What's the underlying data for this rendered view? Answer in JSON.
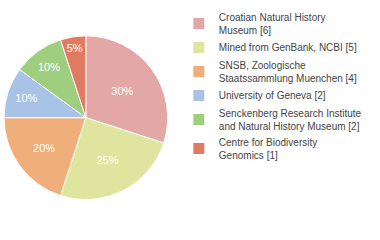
{
  "chart_data": {
    "type": "pie",
    "categories": [
      "Croatian Natural History Museum [6]",
      "Mined from GenBank, NCBI [5]",
      "SNSB, Zoologische Staatssammlung Muenchen [4]",
      "University of Geneva [2]",
      "Senckenberg Research Institute and Natural History Museum [2]",
      "Centre for Biodiversity Genomics [1]"
    ],
    "values": [
      30,
      25,
      20,
      10,
      10,
      5
    ],
    "value_labels": [
      "30%",
      "25%",
      "20%",
      "10%",
      "10%",
      "5%"
    ],
    "colors": [
      "#e3a7a6",
      "#dfe59e",
      "#f0ae7b",
      "#a9c3e6",
      "#9fcf7e",
      "#e27a62"
    ],
    "data_labels": true,
    "legend": "right"
  }
}
